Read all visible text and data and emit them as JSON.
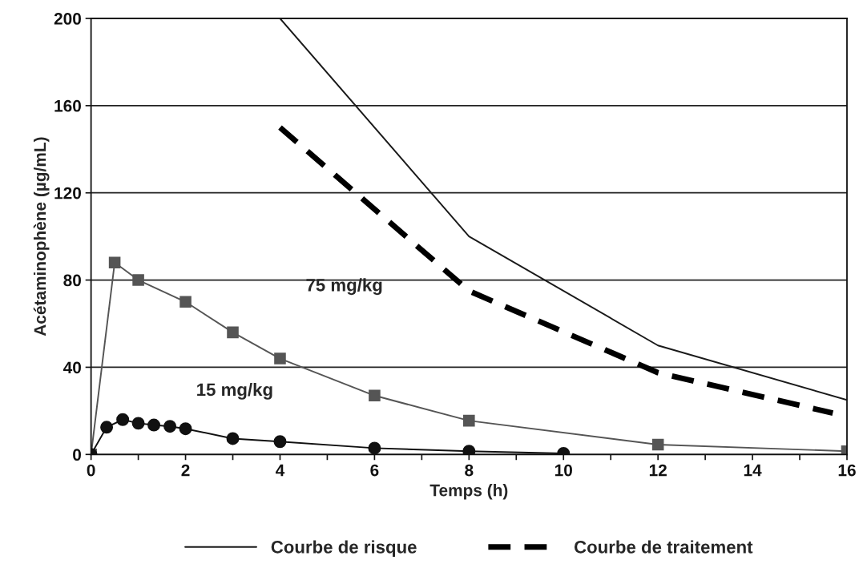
{
  "chart_data": {
    "type": "line",
    "xlabel": "Temps (h)",
    "ylabel": "Acétaminophène (µg/mL)",
    "xlim": [
      0,
      16
    ],
    "xticks": [
      0,
      {
        "value": 1,
        "label": null
      },
      2,
      {
        "value": 3,
        "label": null
      },
      4,
      {
        "value": 5,
        "label": null
      },
      6,
      {
        "value": 7,
        "label": null
      },
      8,
      {
        "value": 9,
        "label": null
      },
      10,
      {
        "value": 11,
        "label": null
      },
      12,
      {
        "value": 13,
        "label": null
      },
      14,
      {
        "value": 15,
        "label": null
      },
      16
    ],
    "ylim": [
      0,
      200
    ],
    "yticks": [
      0,
      40,
      80,
      120,
      160,
      200
    ],
    "grid": "y",
    "legend": "bottom",
    "series": [
      {
        "name": "Courbe de risque",
        "color": "#1a1a1a",
        "x": [
          4,
          8,
          12,
          16
        ],
        "values": [
          200,
          100,
          50,
          25
        ],
        "line_style": "solid",
        "marker": "none"
      },
      {
        "name": "Courbe de traitement",
        "color": "#000000",
        "x": [
          4,
          8,
          12,
          15.7
        ],
        "values": [
          150,
          75,
          37.5,
          19
        ],
        "line_style": "dashed",
        "marker": "none"
      },
      {
        "color": "#555555",
        "x": [
          0,
          0.5,
          1,
          2,
          3,
          4,
          6,
          8,
          12,
          16
        ],
        "values": [
          0,
          88,
          80,
          70,
          56,
          44,
          27,
          15.5,
          4.5,
          1.5
        ],
        "line_style": "solid",
        "marker": "square"
      },
      {
        "color": "#111111",
        "x": [
          0,
          0.33,
          0.67,
          1,
          1.33,
          1.67,
          2,
          3,
          4,
          6,
          8,
          10
        ],
        "values": [
          0,
          12.5,
          16,
          14.3,
          13.5,
          12.9,
          11.8,
          7.3,
          5.9,
          2.9,
          1.5,
          0.5
        ],
        "line_style": "solid",
        "marker": "circle"
      }
    ],
    "annotations": [
      "75 mg/kg",
      "15 mg/kg"
    ]
  }
}
